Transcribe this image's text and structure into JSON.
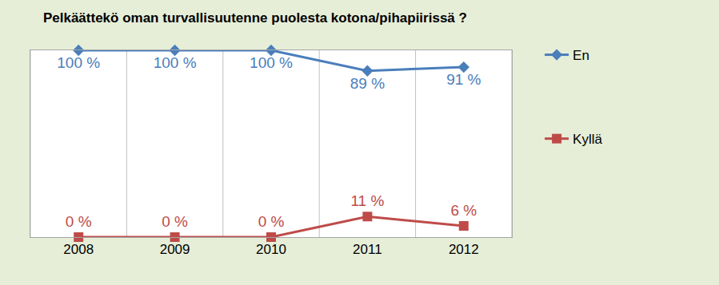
{
  "chart_data": {
    "type": "line",
    "title": "Pelkäättekö oman turvallisuutenne puolesta kotona/pihapiirissä ?",
    "categories": [
      "2008",
      "2009",
      "2010",
      "2011",
      "2012"
    ],
    "series": [
      {
        "name": "En",
        "color": "#4a7ebb",
        "marker": "diamond",
        "values": [
          100,
          100,
          100,
          89,
          91
        ],
        "value_labels": [
          "100 %",
          "100 %",
          "100 %",
          "89 %",
          "91 %"
        ]
      },
      {
        "name": "Kyllä",
        "color": "#be4b48",
        "marker": "square",
        "values": [
          0,
          0,
          0,
          11,
          6
        ],
        "value_labels": [
          "0 %",
          "0 %",
          "0 %",
          "11 %",
          "6 %"
        ]
      }
    ],
    "ylim": [
      0,
      100
    ],
    "grid": true,
    "legend": "right",
    "data_labels": true,
    "tick_labels": "x"
  }
}
